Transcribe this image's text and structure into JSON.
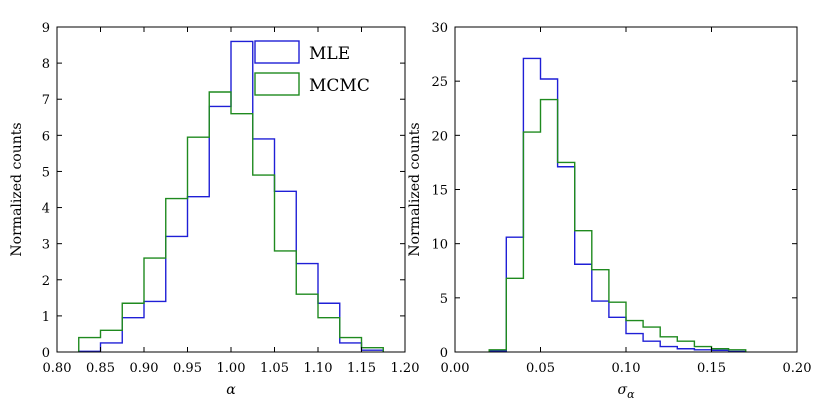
{
  "chart_data": [
    {
      "type": "histogram",
      "xlabel": "α",
      "ylabel": "Normalized counts",
      "xlim": [
        0.8,
        1.2
      ],
      "ylim": [
        0,
        9
      ],
      "xticks": [
        "0.80",
        "0.85",
        "0.90",
        "0.95",
        "1.00",
        "1.05",
        "1.10",
        "1.15",
        "1.20"
      ],
      "yticks": [
        "0",
        "1",
        "2",
        "3",
        "4",
        "5",
        "6",
        "7",
        "8",
        "9"
      ],
      "legend_position": "top-right",
      "series": [
        {
          "name": "MLE",
          "color": "#1f1fd6",
          "bin_edges": [
            0.825,
            0.85,
            0.875,
            0.9,
            0.925,
            0.95,
            0.975,
            1.0,
            1.025,
            1.05,
            1.075,
            1.1,
            1.125,
            1.15,
            1.175
          ],
          "values": [
            0.02,
            0.25,
            0.95,
            1.4,
            3.2,
            4.3,
            6.8,
            8.6,
            5.9,
            4.45,
            2.45,
            1.35,
            0.25,
            0.05
          ]
        },
        {
          "name": "MCMC",
          "color": "#1f8a1f",
          "bin_edges": [
            0.825,
            0.85,
            0.875,
            0.9,
            0.925,
            0.95,
            0.975,
            1.0,
            1.025,
            1.05,
            1.075,
            1.1,
            1.125,
            1.15,
            1.175
          ],
          "values": [
            0.4,
            0.6,
            1.35,
            2.6,
            4.25,
            5.95,
            7.2,
            6.6,
            4.9,
            2.8,
            1.6,
            0.95,
            0.4,
            0.12
          ]
        }
      ]
    },
    {
      "type": "histogram",
      "xlabel": "σ_α",
      "ylabel": "Normalized counts",
      "xlim": [
        0.0,
        0.2
      ],
      "ylim": [
        0,
        30
      ],
      "xticks": [
        "0.00",
        "0.05",
        "0.10",
        "0.15",
        "0.20"
      ],
      "yticks": [
        "0",
        "5",
        "10",
        "15",
        "20",
        "25",
        "30"
      ],
      "series": [
        {
          "name": "MLE",
          "color": "#1f1fd6",
          "bin_edges": [
            0.02,
            0.03,
            0.04,
            0.05,
            0.06,
            0.07,
            0.08,
            0.09,
            0.1,
            0.11,
            0.12,
            0.13,
            0.14,
            0.15,
            0.16,
            0.17
          ],
          "values": [
            0.1,
            10.6,
            27.1,
            25.2,
            17.1,
            8.1,
            4.7,
            3.2,
            1.7,
            1.0,
            0.5,
            0.3,
            0.2,
            0.15,
            0.05
          ]
        },
        {
          "name": "MCMC",
          "color": "#1f8a1f",
          "bin_edges": [
            0.02,
            0.03,
            0.04,
            0.05,
            0.06,
            0.07,
            0.08,
            0.09,
            0.1,
            0.11,
            0.12,
            0.13,
            0.14,
            0.15,
            0.16,
            0.17
          ],
          "values": [
            0.2,
            6.8,
            20.3,
            23.3,
            17.5,
            11.2,
            7.6,
            4.6,
            2.9,
            2.3,
            1.4,
            1.0,
            0.5,
            0.3,
            0.2
          ]
        }
      ]
    }
  ]
}
